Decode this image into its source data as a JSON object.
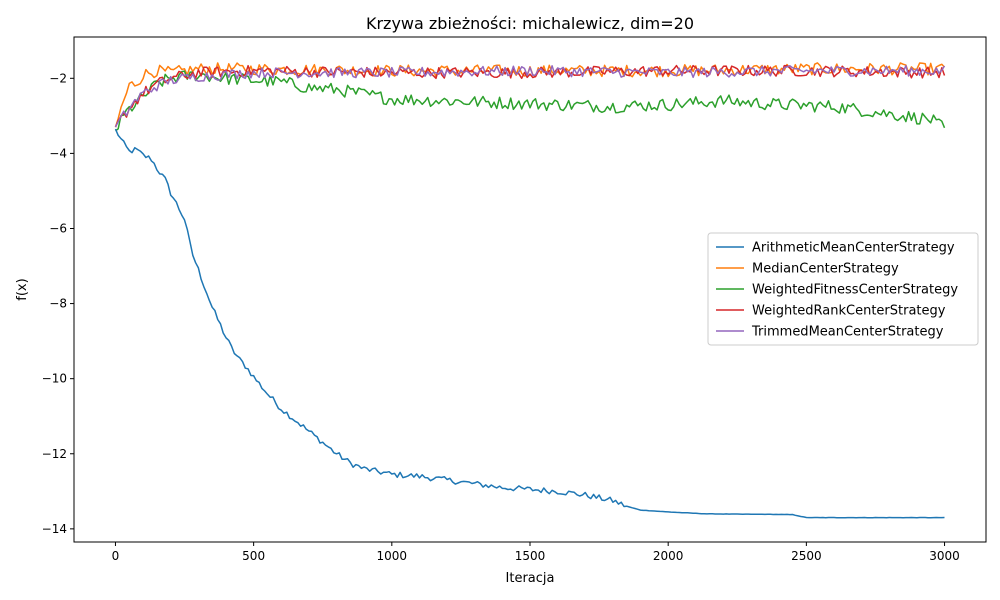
{
  "chart_data": {
    "type": "line",
    "title": "Krzywa zbieżności: michalewicz, dim=20",
    "xlabel": "Iteracja",
    "ylabel": "f(x)",
    "xlim": [
      -150,
      3150
    ],
    "ylim": [
      -14.35,
      -0.9
    ],
    "x_ticks": [
      0,
      500,
      1000,
      1500,
      2000,
      2500,
      3000
    ],
    "y_ticks": [
      -14,
      -12,
      -10,
      -8,
      -6,
      -4,
      -2
    ],
    "grid": false,
    "legend_position": "center-right",
    "series": [
      {
        "name": "ArithmeticMeanCenterStrategy",
        "color": "#1f77b4",
        "noise": 0.08,
        "points": [
          [
            0,
            -3.35
          ],
          [
            25,
            -3.7
          ],
          [
            50,
            -3.95
          ],
          [
            75,
            -3.9
          ],
          [
            100,
            -4.05
          ],
          [
            130,
            -4.15
          ],
          [
            150,
            -4.4
          ],
          [
            180,
            -4.7
          ],
          [
            200,
            -5.05
          ],
          [
            225,
            -5.4
          ],
          [
            250,
            -5.75
          ],
          [
            275,
            -6.6
          ],
          [
            300,
            -7.1
          ],
          [
            325,
            -7.6
          ],
          [
            350,
            -8.1
          ],
          [
            375,
            -8.5
          ],
          [
            400,
            -8.9
          ],
          [
            425,
            -9.25
          ],
          [
            450,
            -9.5
          ],
          [
            475,
            -9.7
          ],
          [
            500,
            -9.95
          ],
          [
            550,
            -10.4
          ],
          [
            600,
            -10.8
          ],
          [
            650,
            -11.1
          ],
          [
            700,
            -11.4
          ],
          [
            750,
            -11.7
          ],
          [
            800,
            -12.0
          ],
          [
            850,
            -12.25
          ],
          [
            900,
            -12.4
          ],
          [
            1000,
            -12.55
          ],
          [
            1100,
            -12.6
          ],
          [
            1200,
            -12.7
          ],
          [
            1300,
            -12.8
          ],
          [
            1400,
            -12.9
          ],
          [
            1500,
            -12.95
          ],
          [
            1600,
            -13.0
          ],
          [
            1700,
            -13.1
          ],
          [
            1800,
            -13.25
          ],
          [
            1850,
            -13.4
          ],
          [
            1900,
            -13.5
          ],
          [
            2000,
            -13.55
          ],
          [
            2140,
            -13.6
          ],
          [
            2450,
            -13.62
          ],
          [
            2500,
            -13.7
          ],
          [
            3000,
            -13.7
          ]
        ]
      },
      {
        "name": "MedianCenterStrategy",
        "color": "#ff7f0e",
        "noise": 0.16,
        "points": [
          [
            0,
            -3.3
          ],
          [
            30,
            -2.6
          ],
          [
            50,
            -2.2
          ],
          [
            80,
            -2.1
          ],
          [
            100,
            -1.9
          ],
          [
            150,
            -1.8
          ],
          [
            200,
            -1.85
          ],
          [
            300,
            -1.75
          ],
          [
            500,
            -1.75
          ],
          [
            1000,
            -1.8
          ],
          [
            1500,
            -1.8
          ],
          [
            2000,
            -1.8
          ],
          [
            2500,
            -1.75
          ],
          [
            3000,
            -1.75
          ]
        ]
      },
      {
        "name": "WeightedFitnessCenterStrategy",
        "color": "#2ca02c",
        "noise": 0.17,
        "points": [
          [
            0,
            -3.4
          ],
          [
            40,
            -2.9
          ],
          [
            100,
            -2.5
          ],
          [
            150,
            -2.15
          ],
          [
            200,
            -2.0
          ],
          [
            300,
            -1.9
          ],
          [
            400,
            -2.0
          ],
          [
            500,
            -2.05
          ],
          [
            600,
            -2.1
          ],
          [
            700,
            -2.25
          ],
          [
            800,
            -2.3
          ],
          [
            1000,
            -2.55
          ],
          [
            1200,
            -2.6
          ],
          [
            1400,
            -2.65
          ],
          [
            1600,
            -2.7
          ],
          [
            1800,
            -2.75
          ],
          [
            2000,
            -2.7
          ],
          [
            2200,
            -2.6
          ],
          [
            2400,
            -2.7
          ],
          [
            2600,
            -2.75
          ],
          [
            2800,
            -2.95
          ],
          [
            2950,
            -3.1
          ],
          [
            3000,
            -3.35
          ]
        ]
      },
      {
        "name": "WeightedRankCenterStrategy",
        "color": "#d62728",
        "noise": 0.15,
        "points": [
          [
            0,
            -3.3
          ],
          [
            30,
            -3.0
          ],
          [
            60,
            -2.7
          ],
          [
            100,
            -2.4
          ],
          [
            150,
            -2.15
          ],
          [
            200,
            -2.0
          ],
          [
            300,
            -1.85
          ],
          [
            500,
            -1.8
          ],
          [
            1000,
            -1.85
          ],
          [
            1500,
            -1.85
          ],
          [
            2000,
            -1.8
          ],
          [
            2500,
            -1.8
          ],
          [
            3000,
            -1.85
          ]
        ]
      },
      {
        "name": "TrimmedMeanCenterStrategy",
        "color": "#9467bd",
        "noise": 0.14,
        "points": [
          [
            0,
            -3.3
          ],
          [
            30,
            -3.0
          ],
          [
            60,
            -2.7
          ],
          [
            100,
            -2.4
          ],
          [
            150,
            -2.2
          ],
          [
            200,
            -2.05
          ],
          [
            300,
            -1.95
          ],
          [
            500,
            -1.85
          ],
          [
            1000,
            -1.85
          ],
          [
            1500,
            -1.8
          ],
          [
            2000,
            -1.85
          ],
          [
            2500,
            -1.8
          ],
          [
            3000,
            -1.8
          ]
        ]
      }
    ]
  }
}
